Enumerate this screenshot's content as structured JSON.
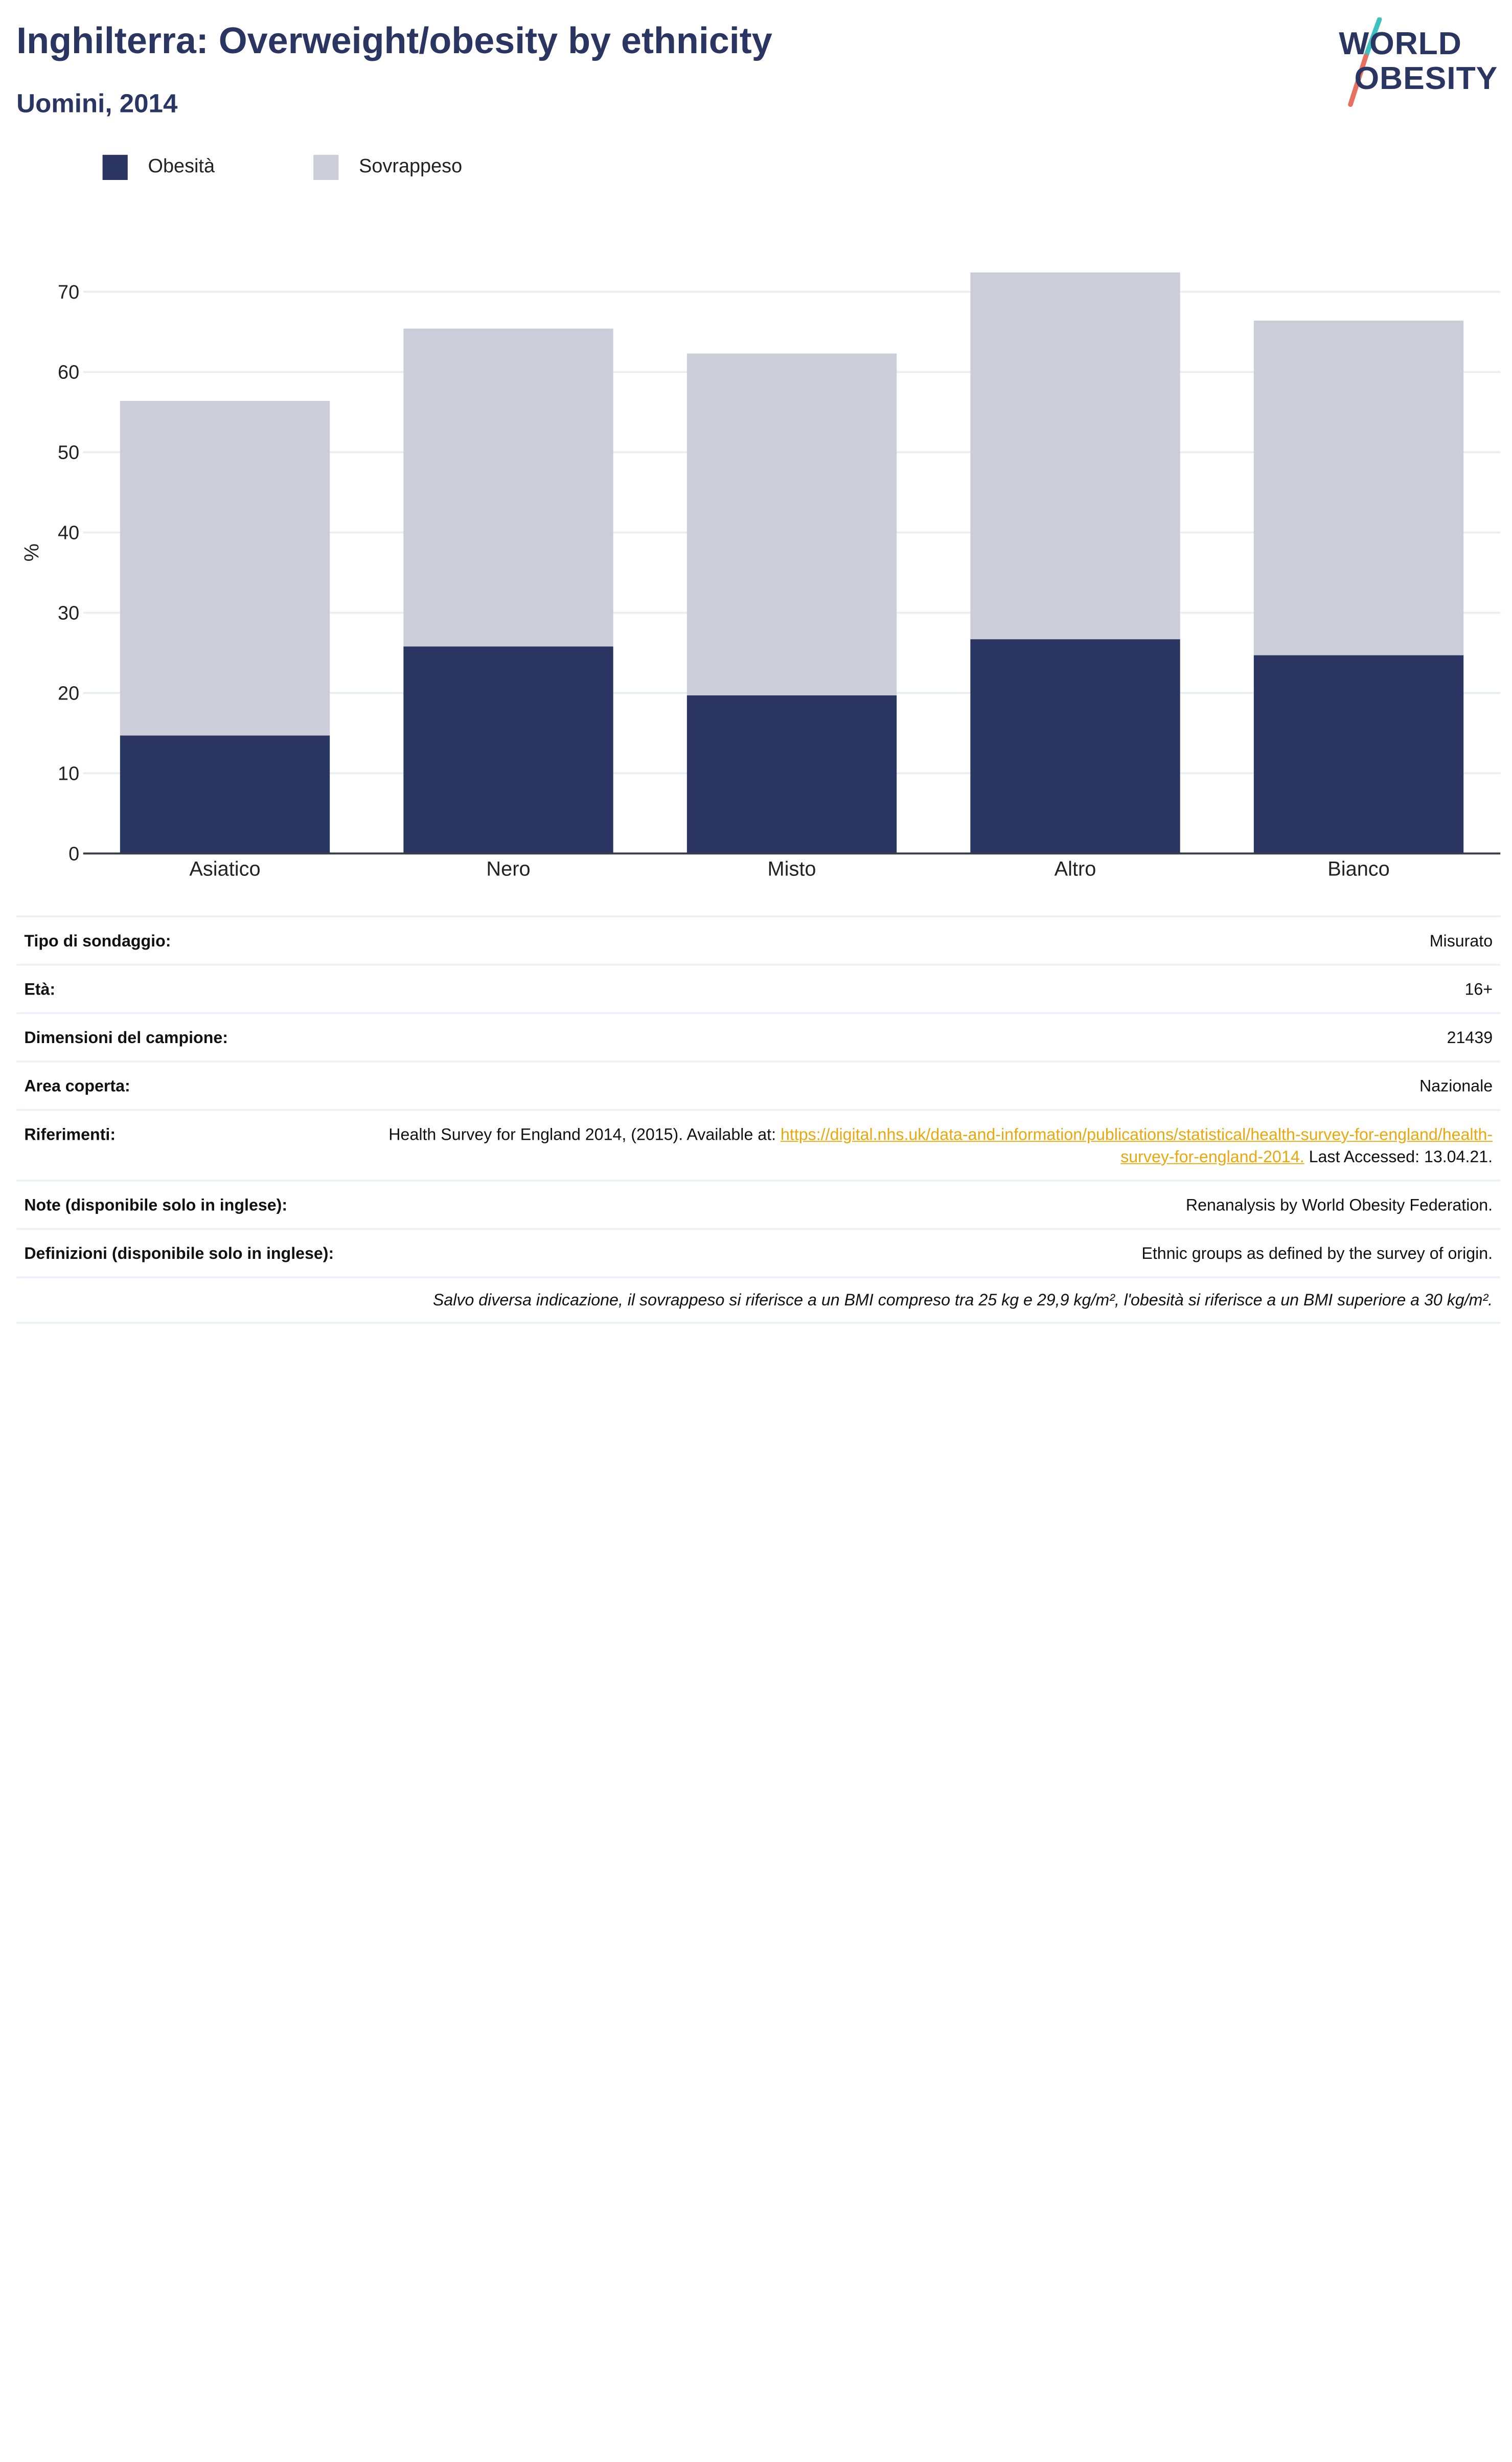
{
  "header": {
    "title": "Inghilterra: Overweight/obesity by ethnicity",
    "subtitle": "Uomini, 2014"
  },
  "logo": {
    "line1": "WORLD",
    "line2": "OBESITY",
    "colors": {
      "text": "#2a3661",
      "slash_top": "#3cc0c0",
      "slash_bottom": "#e8705f"
    }
  },
  "legend": [
    {
      "label": "Obesità",
      "color": "#2a3661"
    },
    {
      "label": "Sovrappeso",
      "color": "#cbcdd8"
    }
  ],
  "chart_data": {
    "type": "bar",
    "stacked": true,
    "categories": [
      "Asiatico",
      "Nero",
      "Misto",
      "Altro",
      "Bianco"
    ],
    "series": [
      {
        "name": "Obesità",
        "color": "#2a3661",
        "values": [
          14.7,
          25.8,
          19.7,
          26.7,
          24.7
        ]
      },
      {
        "name": "Sovrappeso",
        "color": "#cbcdd8",
        "values": [
          41.7,
          39.6,
          42.6,
          45.7,
          41.7
        ]
      }
    ],
    "ylabel": "%",
    "yticks": [
      0,
      10,
      20,
      30,
      40,
      50,
      60,
      70
    ],
    "ylim": [
      0,
      75
    ],
    "grid": true,
    "legend_position": "top-left"
  },
  "info": {
    "rows": [
      {
        "key": "Tipo di sondaggio:",
        "value": "Misurato"
      },
      {
        "key": "Età:",
        "value": "16+"
      },
      {
        "key": "Dimensioni del campione:",
        "value": "21439"
      },
      {
        "key": "Area coperta:",
        "value": "Nazionale"
      },
      {
        "key": "Riferimenti:",
        "value_prefix": "Health Survey for England 2014, (2015). Available at: ",
        "link": "https://digital.nhs.uk/data-and-information/publications/statistical/health-survey-for-england/health-survey-for-england-2014.",
        "value_suffix": " Last Accessed: 13.04.21."
      },
      {
        "key": "Note (disponibile solo in inglese):",
        "value": "Renanalysis by World Obesity Federation."
      },
      {
        "key": "Definizioni (disponibile solo in inglese):",
        "value": "Ethnic groups as defined by the survey of origin."
      }
    ],
    "footnote": "Salvo diversa indicazione, il sovrappeso si riferisce a un BMI compreso tra 25 kg e 29,9 kg/m², l'obesità si riferisce a un BMI superiore a 30 kg/m²."
  }
}
